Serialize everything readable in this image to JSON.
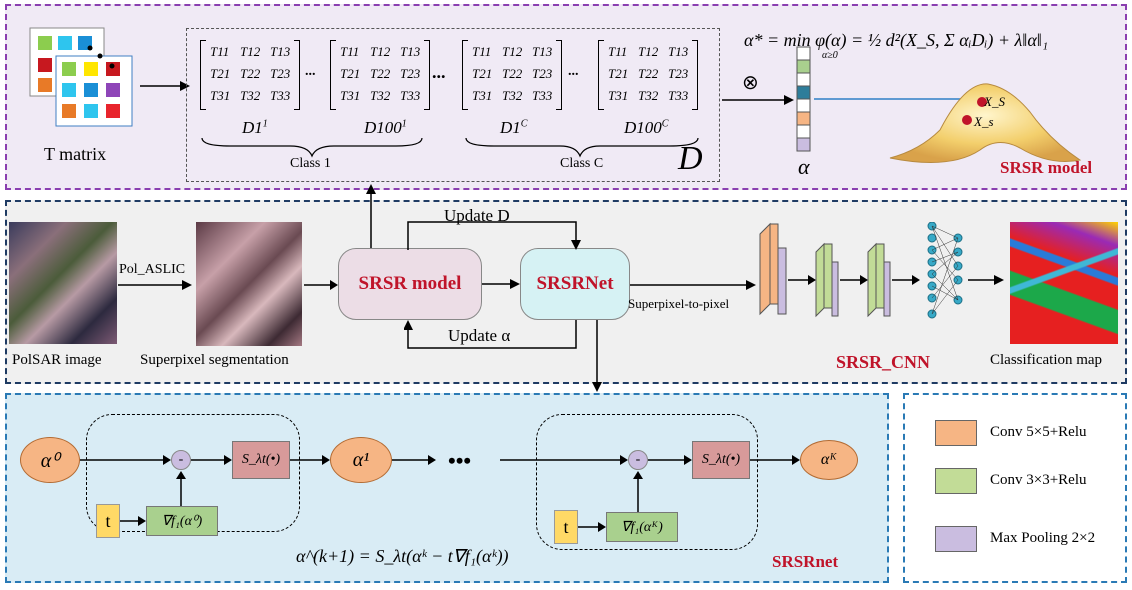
{
  "top": {
    "t_matrix_label": "T matrix",
    "matrix_entries": [
      "T11",
      "T12",
      "T13",
      "T21",
      "T22",
      "T23",
      "T31",
      "T32",
      "T33"
    ],
    "dots": "...",
    "dict_labels": [
      "D1",
      "D100",
      "D1",
      "D100"
    ],
    "dict_sup": [
      "1",
      "1",
      "C",
      "C"
    ],
    "class1": "Class 1",
    "classC": "Class C",
    "D_label": "D",
    "otimes": "⊗",
    "alpha_label": "α",
    "formula": "α* = min φ(α) = ½ d²(X_S, Σ αᵢDᵢ) + λ‖α‖₁",
    "formula_sub": "α≥0",
    "Xs1": "X_S",
    "Xs2": "X_s",
    "model_tag": "SRSR model"
  },
  "mid": {
    "polsar_label": "PolSAR image",
    "pol_aslic": "Pol_ASLIC",
    "superpixel_label": "Superpixel segmentation",
    "srsr_model": "SRSR model",
    "srsrnet": "SRSRNet",
    "update_d": "Update D",
    "update_alpha": "Update α",
    "sp2p": "Superpixel-to-pixel",
    "srsr_cnn": "SRSR_CNN",
    "classmap_label": "Classification map"
  },
  "bot": {
    "alpha0": "α⁰",
    "alpha1": "α¹",
    "alphaK": "αᴷ",
    "minus": "-",
    "s_op": "S_λt(•)",
    "t_box": "t",
    "grad0": "∇f₁(α⁰)",
    "gradK": "∇f₁(αᴷ)",
    "ellipsis": "•••",
    "update_eq": "α^(k+1) = S_λt(αᵏ − t∇f₁(αᵏ))",
    "net_tag": "SRSRnet"
  },
  "legend": {
    "items": [
      {
        "label": "Conv 5×5+Relu",
        "color": "#f6b584"
      },
      {
        "label": "Conv 3×3+Relu",
        "color": "#c2dc97"
      },
      {
        "label": "Max Pooling 2×2",
        "color": "#cabde0"
      }
    ]
  },
  "colors": {
    "accent_red": "#c0142a",
    "node_pink": "#ecdde6",
    "node_cyan": "#d6f2f4",
    "alpha_orange": "#f6b584",
    "s_box": "#d79a9a",
    "grad_box": "#a9d08e",
    "t_box": "#ffd966"
  }
}
